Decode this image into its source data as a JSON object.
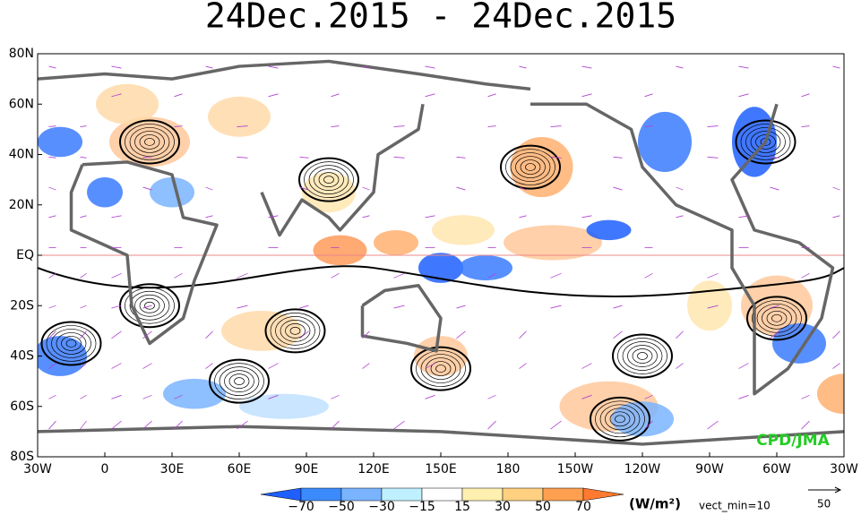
{
  "title": "24Dec.2015 - 24Dec.2015",
  "lat_labels": [
    "80N",
    "60N",
    "40N",
    "20N",
    "EQ",
    "20S",
    "40S",
    "60S",
    "80S"
  ],
  "lon_labels": [
    "30W",
    "0",
    "30E",
    "60E",
    "90E",
    "120E",
    "150E",
    "180",
    "150W",
    "120W",
    "90W",
    "60W",
    "30W"
  ],
  "colorbar": {
    "labels": [
      "−70",
      "−50",
      "−30",
      "−15",
      "15",
      "30",
      "50",
      "70"
    ],
    "unit": "(W/m²)"
  },
  "vector_note": "vect_min=10",
  "reference_vector": "50",
  "credit": "CPD/JMA"
}
